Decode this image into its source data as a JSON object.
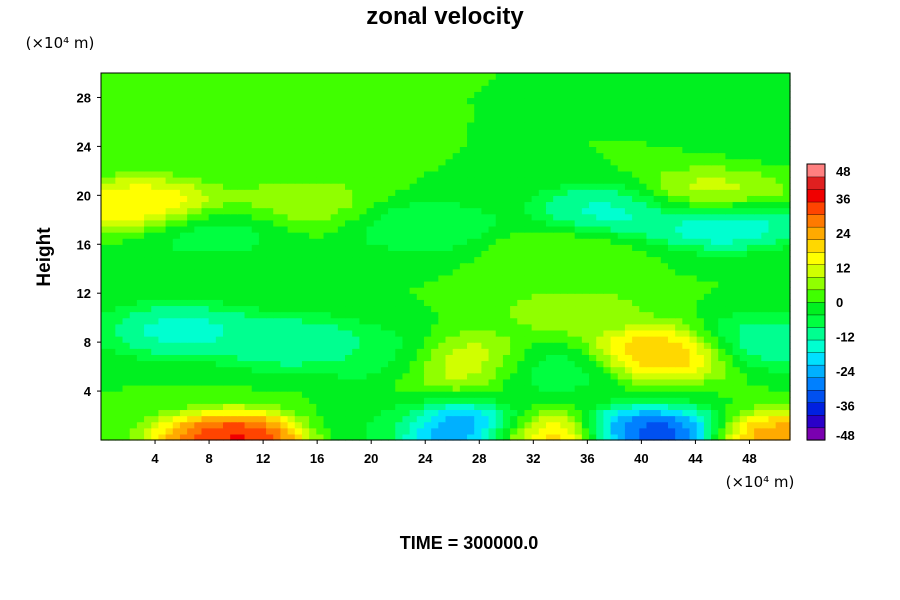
{
  "chart_data": {
    "type": "heatmap",
    "title": "zonal velocity",
    "xlabel": "",
    "ylabel": "Height",
    "x_unit": "(×10⁴ m)",
    "y_unit": "(×10⁴ m)",
    "footer": "TIME = 300000.0",
    "xlim": [
      0,
      51
    ],
    "ylim": [
      0,
      30
    ],
    "xticks": [
      4,
      8,
      12,
      16,
      20,
      24,
      28,
      32,
      36,
      40,
      44,
      48
    ],
    "yticks": [
      4,
      8,
      12,
      16,
      20,
      24,
      28
    ],
    "colorbar": {
      "min": -48,
      "max": 48,
      "ticks": [
        48,
        36,
        24,
        12,
        0,
        -12,
        -24,
        -36,
        -48
      ],
      "colors": [
        "#7a00b0",
        "#2a00c8",
        "#0020e0",
        "#0050f0",
        "#0080ff",
        "#00b0ff",
        "#00e0ff",
        "#00ffd0",
        "#00ff90",
        "#00ff40",
        "#00f020",
        "#40ff00",
        "#90ff00",
        "#d0ff00",
        "#ffff00",
        "#ffd800",
        "#ffaa00",
        "#ff7a00",
        "#ff4400",
        "#f00000",
        "#e02020",
        "#ff8080"
      ]
    },
    "field": {
      "background": 0,
      "features": [
        {
          "x": 51,
          "y": 25,
          "value": -3
        },
        {
          "x": 3,
          "y": 19.2,
          "value": 22
        },
        {
          "x": 15,
          "y": 19.4,
          "value": 8
        },
        {
          "x": 45,
          "y": 20,
          "value": 14
        },
        {
          "x": 38,
          "y": 18.8,
          "value": -18
        },
        {
          "x": 46,
          "y": 17.8,
          "value": -22
        },
        {
          "x": 24,
          "y": 17.5,
          "value": -10
        },
        {
          "x": 8,
          "y": 17,
          "value": -8
        },
        {
          "x": 34,
          "y": 15.5,
          "value": 4
        },
        {
          "x": 6,
          "y": 9,
          "value": -18
        },
        {
          "x": 14,
          "y": 8,
          "value": -16
        },
        {
          "x": 21,
          "y": 7,
          "value": -10
        },
        {
          "x": 27,
          "y": 6.5,
          "value": 18
        },
        {
          "x": 41.5,
          "y": 7.2,
          "value": 28
        },
        {
          "x": 33,
          "y": 6,
          "value": -10
        },
        {
          "x": 49,
          "y": 8,
          "value": -16
        },
        {
          "x": 35,
          "y": 10.5,
          "value": 8
        },
        {
          "x": 10,
          "y": 0.1,
          "value": 44
        },
        {
          "x": 27,
          "y": 0.6,
          "value": -40
        },
        {
          "x": 32.5,
          "y": 0.1,
          "value": 32
        },
        {
          "x": 40.5,
          "y": 0.5,
          "value": -42
        },
        {
          "x": 50.5,
          "y": 0.1,
          "value": 32
        },
        {
          "x": 20,
          "y": 1,
          "value": -4
        }
      ]
    }
  }
}
